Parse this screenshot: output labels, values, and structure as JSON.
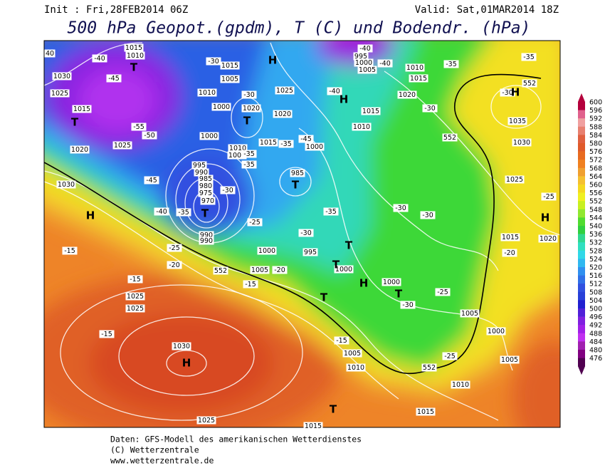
{
  "header": {
    "init": "Init : Fri,28FEB2014 06Z",
    "valid": "Valid: Sat,01MAR2014 18Z",
    "title": "500 hPa Geopot.(gpdm), T (C) und Bodendr. (hPa)"
  },
  "footer": [
    "Daten: GFS-Modell des amerikanischen Wetterdienstes",
    "(C) Wetterzentrale",
    "www.wetterzentrale.de"
  ],
  "colorbar": {
    "levels": [
      "600",
      "596",
      "592",
      "588",
      "584",
      "580",
      "576",
      "572",
      "568",
      "564",
      "560",
      "556",
      "552",
      "548",
      "544",
      "540",
      "536",
      "532",
      "528",
      "524",
      "520",
      "516",
      "512",
      "508",
      "504",
      "500",
      "496",
      "492",
      "488",
      "484",
      "480",
      "476"
    ],
    "colors": [
      "#b4003c",
      "#e0608c",
      "#f0a0a0",
      "#e88070",
      "#e06040",
      "#e05a2a",
      "#e86a20",
      "#f08020",
      "#f0a030",
      "#f5c030",
      "#f5d820",
      "#f0f020",
      "#c8f020",
      "#90e830",
      "#50dc30",
      "#30d040",
      "#30d890",
      "#30e0c0",
      "#30d8e8",
      "#30b8f0",
      "#3090f0",
      "#3070e8",
      "#3050e0",
      "#2840d8",
      "#2020d0",
      "#5020d8",
      "#8020e0",
      "#a020e8",
      "#c030f0",
      "#a020b0",
      "#800080",
      "#500050"
    ]
  },
  "map_labels": [
    "40",
    "1015",
    "1010",
    "T",
    "-40",
    "-45",
    "1030",
    "1025",
    "1015",
    "T",
    "-50",
    "-55",
    "1025",
    "1020",
    "H",
    "-30",
    "1015",
    "1005",
    "1010",
    "-30",
    "1000",
    "1020",
    "T",
    "1025",
    "1020",
    "995",
    "1000",
    "1005",
    "-40",
    "-40",
    "1010",
    "1015",
    "-35",
    "1020",
    "-40",
    "H",
    "1015",
    "-30",
    "1010",
    "1000",
    "1015",
    "-35",
    "-45",
    "1000",
    "1010",
    "1005",
    "-35",
    "995",
    "990",
    "985",
    "980",
    "975",
    "970",
    "-30",
    "T",
    "-45",
    "-40",
    "-35",
    "985",
    "T",
    "-35",
    "-35",
    "-25",
    "990",
    "990",
    "-30",
    "1000",
    "995",
    "T",
    "-30",
    "-30",
    "-25",
    "-20",
    "-15",
    "552",
    "1005",
    "-20",
    "1000",
    "T",
    "H",
    "1000",
    "T",
    "-30",
    "-25",
    "T",
    "-15",
    "-15",
    "1025",
    "1025",
    "-15",
    "1030",
    "H",
    "-15",
    "1005",
    "1010",
    "552",
    "-25",
    "1005",
    "1000",
    "1005",
    "1010",
    "T",
    "1015",
    "1025",
    "1015",
    "-35",
    "552",
    "-30",
    "H",
    "1035",
    "552",
    "1030",
    "1025",
    "-25",
    "H",
    "1015",
    "1020",
    "-20",
    "1030",
    "H"
  ]
}
